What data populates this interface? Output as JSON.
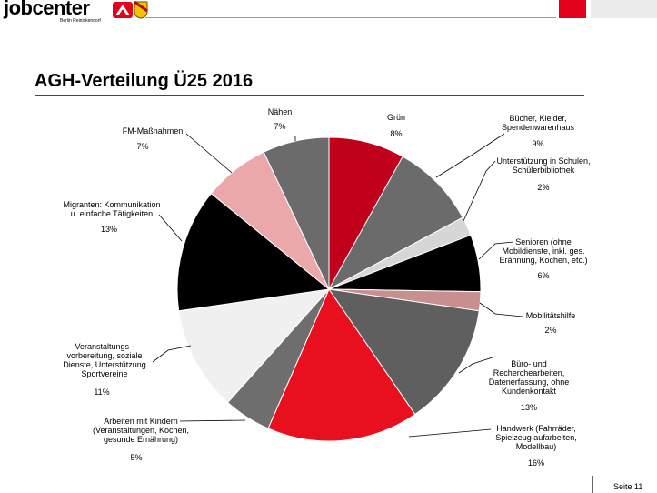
{
  "header": {
    "logo_text": "jobcenter",
    "logo_subtext": "Berlin Reinickendorf",
    "page_title": "AGH-Verteilung Ü25 2016"
  },
  "footer": {
    "page_label": "Seite 11"
  },
  "colors": {
    "brand_red": "#e2001a"
  },
  "chart_data": {
    "type": "pie",
    "title": "AGH-Verteilung Ü25 2016",
    "slices": [
      {
        "label": "Grün",
        "value_label": "8%",
        "value": 8,
        "color": "#c0001a"
      },
      {
        "label": "Bücher, Kleider, Spendenwarenhaus",
        "label_lines": [
          "Bücher, Kleider,",
          "Spendenwarenhaus"
        ],
        "value_label": "9%",
        "value": 9,
        "color": "#6b6b6b"
      },
      {
        "label": "Unterstützung in Schulen, Schülerbibliothek",
        "label_lines": [
          "Unterstützung in Schulen,",
          "Schülerbibliothek"
        ],
        "value_label": "2%",
        "value": 2,
        "color": "#d6d6d6"
      },
      {
        "label": "Senioren (ohne Mobildienste, inkl. ges. Erähnung, Kochen, etc.)",
        "label_lines": [
          "Senioren (ohne",
          "Mobildienste, inkl. ges.",
          "Erähnung, Kochen, etc.)"
        ],
        "value_label": "6%",
        "value": 6,
        "color": "#000000"
      },
      {
        "label": "Mobilitätshilfe",
        "label_lines": [
          "Mobilitätshilfe"
        ],
        "value_label": "2%",
        "value": 2,
        "color": "#c98f8f"
      },
      {
        "label": "Büro- und Recherchearbeiten, Datenerfassung, ohne Kundenkontakt",
        "label_lines": [
          "Büro- und",
          "Recherchearbeiten,",
          "Datenerfassung, ohne",
          "Kundenkontakt"
        ],
        "value_label": "13%",
        "value": 13,
        "color": "#5f5f5f"
      },
      {
        "label": "Handwerk (Fahrräder, Spielzeug aufarbeiten, Modellbau)",
        "label_lines": [
          "Handwerk (Fahrräder,",
          "Spielzeug aufarbeiten,",
          "Modellbau)"
        ],
        "value_label": "16%",
        "value": 16,
        "color": "#e8101e"
      },
      {
        "label": "Arbeiten mit Kindern (Veranstaltungen, Kochen, gesunde Ernährung)",
        "label_lines": [
          "Arbeiten mit Kindern",
          "(Veranstaltungen, Kochen,",
          "gesunde Ernährung)"
        ],
        "value_label": "5%",
        "value": 5,
        "color": "#6e6e6e"
      },
      {
        "label": "Veranstaltungs - vorbereitung, soziale Dienste, Unterstützung Sportvereine",
        "label_lines": [
          "Veranstaltungs -",
          "vorbereitung, soziale",
          "Dienste, Unterstützung",
          "Sportvereine"
        ],
        "value_label": "11%",
        "value": 11,
        "color": "#f0f0f0"
      },
      {
        "label": "Migranten: Kommunikation u. einfache Tätigkeiten",
        "label_lines": [
          "Migranten: Kommunikation",
          "u. einfache Tätigkeiten"
        ],
        "value_label": "13%",
        "value": 13,
        "color": "#000000"
      },
      {
        "label": "FM-Maßnahmen",
        "label_lines": [
          "FM-Maßnahmen"
        ],
        "value_label": "7%",
        "value": 7,
        "color": "#eba8ab"
      },
      {
        "label": "Nähen",
        "value_label": "7%",
        "value": 7,
        "color": "#6b6b6b"
      }
    ]
  }
}
